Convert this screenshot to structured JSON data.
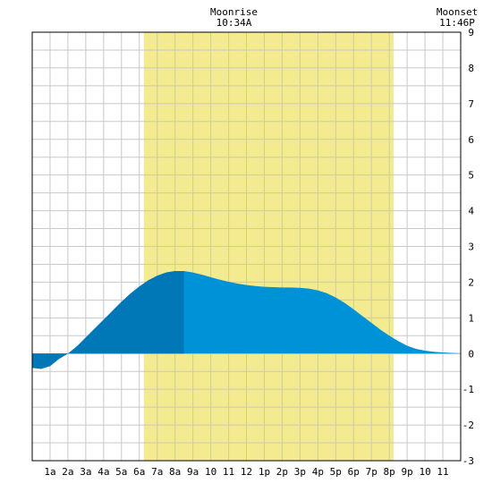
{
  "chart_data": {
    "type": "area",
    "x_ticks": [
      "1a",
      "2a",
      "3a",
      "4a",
      "5a",
      "6a",
      "7a",
      "8a",
      "9a",
      "10",
      "11",
      "12",
      "1p",
      "2p",
      "3p",
      "4p",
      "5p",
      "6p",
      "7p",
      "8p",
      "9p",
      "10",
      "11"
    ],
    "y_ticks": [
      "-3",
      "-2",
      "-1",
      "0",
      "1",
      "2",
      "3",
      "4",
      "5",
      "6",
      "7",
      "8",
      "9"
    ],
    "xlim": [
      0,
      24
    ],
    "ylim": [
      -3,
      9
    ],
    "grid": true,
    "daylight_band": {
      "start_hour": 6.25,
      "end_hour": 20.25
    },
    "moon_events": [
      {
        "label": "Moonrise",
        "time": "10:34A",
        "hour": 11.3
      },
      {
        "label": "Moonset",
        "time": "11:46P",
        "hour": 23.8
      }
    ],
    "series": [
      {
        "x": [
          0,
          0.5,
          1,
          1.5,
          2,
          2.5,
          3,
          3.5,
          4,
          4.5,
          5,
          5.5,
          6,
          6.5,
          7,
          7.5,
          8,
          8.5,
          9,
          9.5,
          10,
          10.5,
          11,
          11.5,
          12,
          12.5,
          13,
          13.5,
          14,
          14.5,
          15,
          15.5,
          16,
          16.5,
          17,
          17.5,
          18,
          18.5,
          19,
          19.5,
          20,
          20.5,
          21,
          21.5,
          22,
          22.5,
          23,
          23.5,
          24
        ],
        "y": [
          -0.4,
          -0.43,
          -0.35,
          -0.15,
          0.0,
          0.2,
          0.45,
          0.7,
          0.95,
          1.2,
          1.45,
          1.68,
          1.88,
          2.05,
          2.18,
          2.27,
          2.31,
          2.31,
          2.27,
          2.21,
          2.14,
          2.07,
          2.01,
          1.96,
          1.92,
          1.89,
          1.87,
          1.86,
          1.85,
          1.85,
          1.84,
          1.82,
          1.77,
          1.69,
          1.57,
          1.42,
          1.24,
          1.05,
          0.86,
          0.67,
          0.5,
          0.35,
          0.22,
          0.13,
          0.08,
          0.05,
          0.03,
          0.02,
          0.01
        ]
      }
    ],
    "dark_fill_until_hour": 8.5,
    "colors": {
      "fill_light": "#0092d6",
      "fill_dark": "#0078b8",
      "daylight": "#f4ea8f",
      "grid": "#c8c8c8",
      "frame": "#000000",
      "text": "#000000"
    }
  }
}
